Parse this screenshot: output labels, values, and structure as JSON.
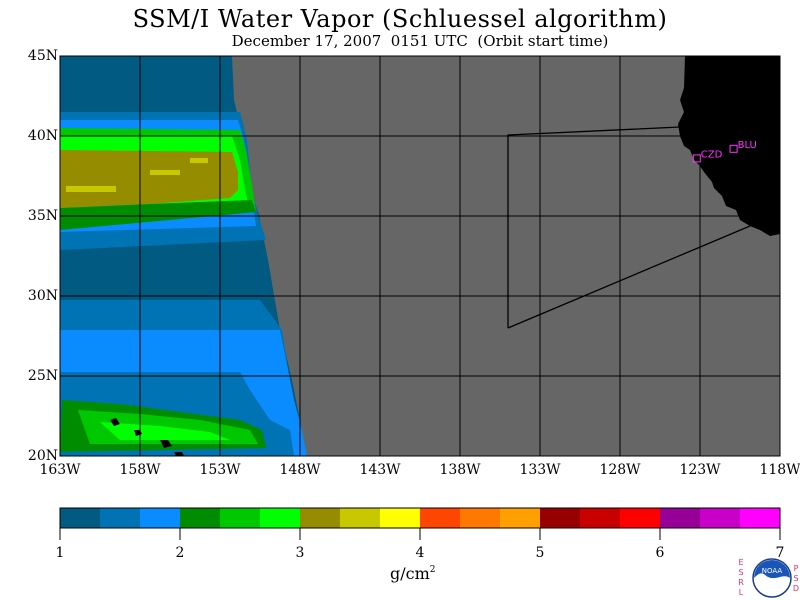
{
  "header": {
    "title": "SSM/I Water Vapor (Schluessel algorithm)",
    "subtitle": "December 17, 2007  0151 UTC  (Orbit start time)"
  },
  "map": {
    "lat_labels": [
      "45N",
      "40N",
      "35N",
      "30N",
      "25N",
      "20N"
    ],
    "lon_labels": [
      "163W",
      "158W",
      "153W",
      "148W",
      "143W",
      "138W",
      "133W",
      "128W",
      "123W",
      "118W"
    ],
    "lat_range": [
      20,
      45
    ],
    "lon_range": [
      -163,
      -118
    ],
    "stations": [
      {
        "id": "CZD",
        "lat": 38.6,
        "lon": -123.2
      },
      {
        "id": "BLU",
        "lat": 39.2,
        "lon": -120.9
      }
    ],
    "colors": {
      "no_data": "#666666",
      "land": "#000000",
      "grid": "#000000",
      "station": "#ff33ff"
    }
  },
  "colorbar": {
    "labels": [
      "1",
      "2",
      "3",
      "4",
      "5",
      "6",
      "7"
    ],
    "colors": [
      "#005a82",
      "#0073b4",
      "#0a8cff",
      "#008c00",
      "#00c800",
      "#00ff00",
      "#968c00",
      "#c8c800",
      "#ffff00",
      "#ff4600",
      "#ff7800",
      "#ffa000",
      "#960000",
      "#c80000",
      "#ff0000",
      "#960096",
      "#c800c8",
      "#ff00ff"
    ],
    "unit": "g/cm",
    "unit_exp": "2"
  },
  "logo": {
    "esrl": [
      "E",
      "S",
      "R",
      "L"
    ],
    "psd": [
      "P",
      "S",
      "D"
    ],
    "noaa": "NOAA"
  }
}
